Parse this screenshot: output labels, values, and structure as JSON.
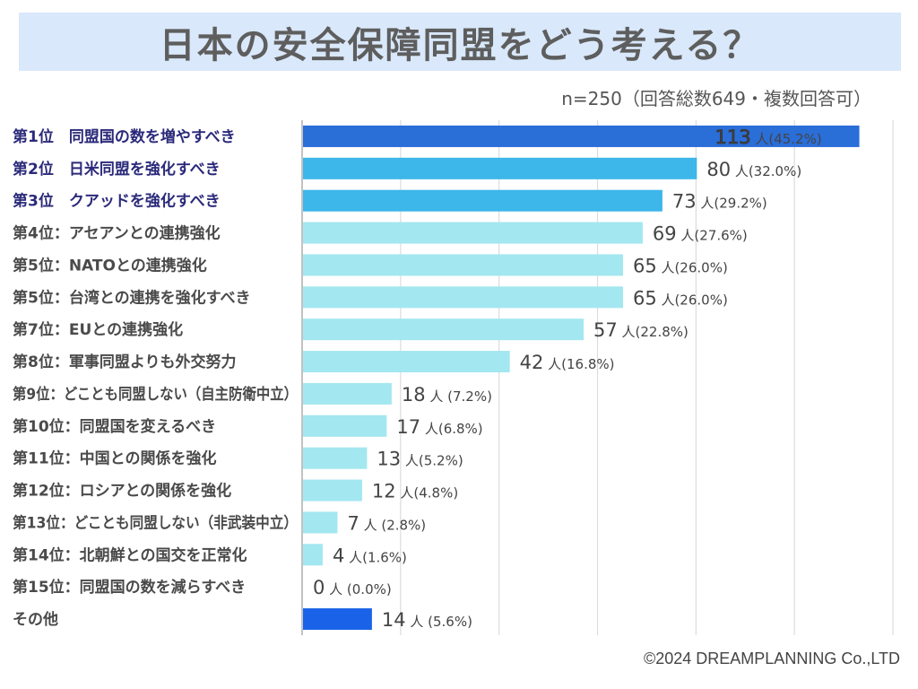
{
  "title": "日本の安全保障同盟をどう考える？",
  "subtitle": "n=250（回答総数649・複数回答可）",
  "footer": "©2024 DREAMPLANNING Co.,LTD",
  "colors": {
    "title_band": "#d9e8fa",
    "rank1": "#2a6ed8",
    "rank2_3": "#3db6ea",
    "others": "#a3e7f0",
    "other_category": "#1a63e8",
    "top_label": "#2b2a7a",
    "label": "#4a4a4a"
  },
  "chart_data": {
    "type": "bar",
    "orientation": "horizontal",
    "title": "日本の安全保障同盟をどう考える？",
    "xlabel": "",
    "ylabel": "",
    "xlim": [
      0,
      120
    ],
    "grid": true,
    "unit": "人",
    "categories": [
      "第1位　同盟国の数を増やすべき",
      "第2位　日米同盟を強化すべき",
      "第3位　クアッドを強化すべき",
      "第4位：アセアンとの連携強化",
      "第5位：NATOとの連携強化",
      "第5位：台湾との連携を強化すべき",
      "第7位：EUとの連携強化",
      "第8位：軍事同盟よりも外交努力",
      "第9位：どことも同盟しない（自主防衛中立）",
      "第10位：同盟国を変えるべき",
      "第11位：中国との関係を強化",
      "第12位：ロシアとの関係を強化",
      "第13位：どことも同盟しない（非武装中立）",
      "第14位：北朝鮮との国交を正常化",
      "第15位：同盟国の数を減らすべき",
      "その他"
    ],
    "values": [
      113,
      80,
      73,
      69,
      65,
      65,
      57,
      42,
      18,
      17,
      13,
      12,
      7,
      4,
      0,
      14
    ],
    "percents": [
      "45.2%",
      "32.0%",
      "29.2%",
      "27.6%",
      "26.0%",
      "26.0%",
      "22.8%",
      "16.8%",
      "7.2%",
      "6.8%",
      "5.2%",
      "4.8%",
      "2.8%",
      "1.6%",
      "0.0%",
      "5.6%"
    ],
    "data_labels": [
      "113 人(45.2%)",
      "80 人(32.0%)",
      "73 人(29.2%)",
      "69 人(27.6%)",
      "65 人(26.0%)",
      "65 人(26.0%)",
      "57 人(22.8%)",
      "42 人(16.8%)",
      "18 人 (7.2%)",
      "17 人(6.8%)",
      "13 人(5.2%)",
      "12 人(4.8%)",
      "7 人 (2.8%)",
      "4 人(1.6%)",
      "0 人 (0.0%)",
      "14 人 (5.6%)"
    ],
    "color_groups": [
      "rank1",
      "rank2_3",
      "rank2_3",
      "others",
      "others",
      "others",
      "others",
      "others",
      "others",
      "others",
      "others",
      "others",
      "others",
      "others",
      "others",
      "other_category"
    ]
  }
}
